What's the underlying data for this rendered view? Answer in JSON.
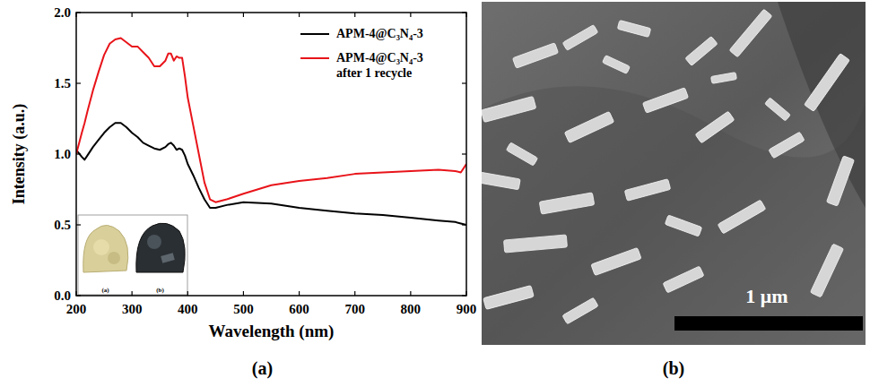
{
  "chart_data": {
    "type": "line",
    "x_label": "Wavelength (nm)",
    "y_label": "Intensity (a.u.)",
    "xlim": [
      200,
      900
    ],
    "ylim": [
      0,
      2
    ],
    "xticks": [
      200,
      300,
      400,
      500,
      600,
      700,
      800,
      900
    ],
    "yticks": [
      {
        "value": 0,
        "label": "0.0"
      },
      {
        "value": 0.5,
        "label": "0.5"
      },
      {
        "value": 1,
        "label": "1.0"
      },
      {
        "value": 1.5,
        "label": "1.5"
      },
      {
        "value": 2,
        "label": "2.0"
      }
    ],
    "grid": false,
    "legend": "upper right",
    "x": [
      200,
      210,
      215,
      220,
      230,
      240,
      250,
      260,
      270,
      280,
      290,
      300,
      310,
      320,
      330,
      340,
      350,
      360,
      365,
      370,
      375,
      380,
      385,
      390,
      395,
      400,
      410,
      420,
      430,
      440,
      450,
      470,
      500,
      550,
      600,
      650,
      700,
      750,
      800,
      850,
      880,
      890,
      900
    ],
    "series": [
      {
        "name": "APM-4@C₃N₄-3",
        "color": "#000000",
        "values": [
          1.03,
          0.98,
          0.96,
          0.99,
          1.05,
          1.1,
          1.15,
          1.19,
          1.22,
          1.22,
          1.19,
          1.15,
          1.12,
          1.08,
          1.06,
          1.04,
          1.03,
          1.05,
          1.07,
          1.08,
          1.06,
          1.03,
          1.04,
          1.03,
          0.99,
          0.93,
          0.85,
          0.76,
          0.68,
          0.62,
          0.62,
          0.64,
          0.66,
          0.65,
          0.62,
          0.6,
          0.58,
          0.57,
          0.55,
          0.53,
          0.52,
          0.51,
          0.5
        ]
      },
      {
        "name": "APM-4@C₃N₄-3 after 1 recycle",
        "color": "#e8141a",
        "values": [
          1.0,
          1.15,
          1.22,
          1.3,
          1.45,
          1.58,
          1.7,
          1.78,
          1.81,
          1.82,
          1.79,
          1.76,
          1.76,
          1.72,
          1.68,
          1.62,
          1.62,
          1.66,
          1.71,
          1.71,
          1.66,
          1.69,
          1.68,
          1.68,
          1.55,
          1.4,
          1.2,
          1.0,
          0.8,
          0.68,
          0.66,
          0.68,
          0.72,
          0.78,
          0.81,
          0.83,
          0.86,
          0.87,
          0.88,
          0.89,
          0.88,
          0.87,
          0.93
        ]
      }
    ]
  },
  "inset": {
    "labels": [
      "(a)",
      "(b)"
    ]
  },
  "sem_image": {
    "scale_bar": "1 μm"
  },
  "panels": [
    "(a)",
    "(b)"
  ]
}
